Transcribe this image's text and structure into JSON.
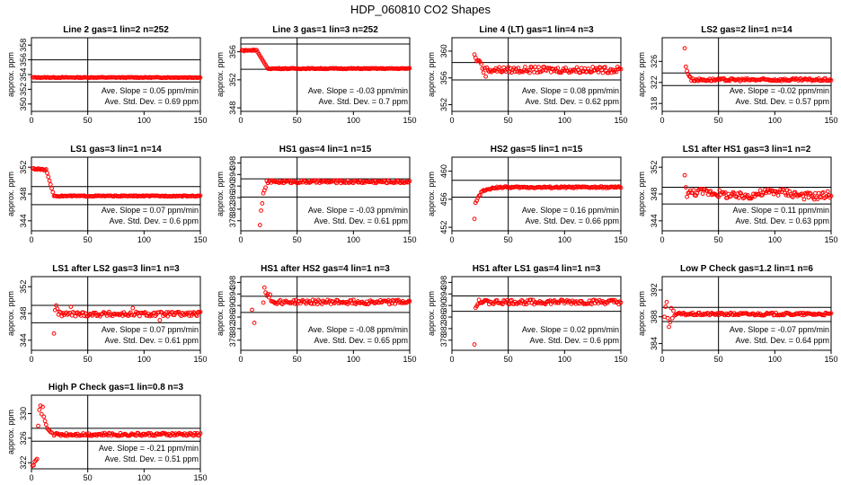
{
  "page": {
    "title": "HDP_060810  CO2 Shapes"
  },
  "chart_data": [
    {
      "type": "scatter",
      "title": "Line 2 gas=1 lin=2 n=252",
      "ylabel": "approx. ppm",
      "xlim": [
        0,
        150
      ],
      "ylim": [
        349,
        359
      ],
      "xticks": [
        0,
        50,
        100,
        150
      ],
      "yticks": [
        350,
        352,
        354,
        356,
        358
      ],
      "hlines": [
        356,
        353
      ],
      "vline": 50,
      "slope_text": "Ave. Slope =  0.05  ppm/min",
      "std_text": "Ave. Std. Dev. =  0.69  ppm",
      "series": [
        {
          "name": "CO2",
          "shape": "flat",
          "start": 1,
          "end": 150,
          "base": 353.6,
          "noise": 0.05,
          "cycles": 0
        }
      ]
    },
    {
      "type": "scatter",
      "title": "Line 3 gas=1 lin=3 n=252",
      "ylabel": "approx. ppm",
      "xlim": [
        0,
        150
      ],
      "ylim": [
        347.5,
        358
      ],
      "xticks": [
        0,
        50,
        100,
        150
      ],
      "yticks": [
        348,
        352,
        356
      ],
      "hlines": [
        357.1,
        353.5
      ],
      "vline": 50,
      "slope_text": "Ave. Slope =  -0.03  ppm/min",
      "std_text": "Ave. Std. Dev. =  0.7  ppm",
      "series": [
        {
          "name": "CO2",
          "shape": "drop",
          "start": 1,
          "end": 150,
          "base": 353.6,
          "noise": 0.06,
          "head_level": 356.2,
          "head_end": 14,
          "tail_end": 24,
          "cycles": 0
        }
      ]
    },
    {
      "type": "scatter",
      "title": "Line 4 (LT) gas=1 lin=4 n=3",
      "ylabel": "approx. ppm",
      "xlim": [
        0,
        150
      ],
      "ylim": [
        351,
        362
      ],
      "xticks": [
        0,
        50,
        100,
        150
      ],
      "yticks": [
        352,
        356,
        360
      ],
      "hlines": [
        358.3,
        355.7
      ],
      "vline": 50,
      "slope_text": "Ave. Slope =  0.08  ppm/min",
      "std_text": "Ave. Std. Dev. =  0.62  ppm",
      "series": [
        {
          "name": "CO2",
          "shape": "flat",
          "start": 20,
          "end": 150,
          "base": 357.2,
          "noise": 0.45,
          "cycles": 0,
          "spikes": [
            [
              20,
              359.5
            ],
            [
              21,
              359
            ],
            [
              22,
              358.5
            ],
            [
              23,
              358.6
            ],
            [
              24,
              358.6
            ],
            [
              25,
              358.4
            ],
            [
              26,
              358.1
            ],
            [
              27,
              357.4
            ],
            [
              28,
              356.8
            ],
            [
              30,
              356.2
            ]
          ]
        }
      ]
    },
    {
      "type": "scatter",
      "title": "LS2 gas=2 lin=1 n=14",
      "ylabel": "approx. ppm",
      "xlim": [
        0,
        150
      ],
      "ylim": [
        316.5,
        330.5
      ],
      "xticks": [
        0,
        50,
        100,
        150
      ],
      "yticks": [
        318,
        322,
        326
      ],
      "hlines": [
        323.8,
        321.4
      ],
      "vline": 50,
      "slope_text": "Ave. Slope =  -0.02  ppm/min",
      "std_text": "Ave. Std. Dev. =  0.57  ppm",
      "series": [
        {
          "name": "CO2",
          "shape": "flat",
          "start": 20,
          "end": 150,
          "base": 322.5,
          "noise": 0.25,
          "cycles": 0,
          "spikes": [
            [
              20,
              328.5
            ],
            [
              21,
              325
            ],
            [
              22,
              324.2
            ],
            [
              23,
              323.6
            ],
            [
              24,
              323.2
            ],
            [
              25,
              323
            ]
          ]
        }
      ]
    },
    {
      "type": "scatter",
      "title": "LS1 gas=3 lin=1 n=14",
      "ylabel": "approx. ppm",
      "xlim": [
        0,
        150
      ],
      "ylim": [
        342.5,
        353.5
      ],
      "xticks": [
        0,
        50,
        100,
        150
      ],
      "yticks": [
        344,
        348,
        352
      ],
      "hlines": [
        349.1,
        346.4
      ],
      "vline": 50,
      "slope_text": "Ave. Slope =  0.07  ppm/min",
      "std_text": "Ave. Std. Dev. =  0.6  ppm",
      "series": [
        {
          "name": "CO2",
          "shape": "drop",
          "start": 1,
          "end": 150,
          "base": 347.7,
          "noise": 0.07,
          "head_level": 351.7,
          "head_end": 13,
          "tail_end": 20,
          "cycles": 0
        }
      ]
    },
    {
      "type": "scatter",
      "title": "HS1 gas=4 lin=1 n=15",
      "ylabel": "approx. ppm",
      "xlim": [
        0,
        150
      ],
      "ylim": [
        374.5,
        400
      ],
      "xticks": [
        0,
        50,
        100,
        150
      ],
      "yticks": [
        378,
        382,
        386,
        390,
        394,
        398
      ],
      "hlines": [
        392.5,
        386.2
      ],
      "vline": 50,
      "slope_text": "Ave. Slope =  -0.03  ppm/min",
      "std_text": "Ave. Std. Dev. =  0.61  ppm",
      "series": [
        {
          "name": "CO2",
          "shape": "flat",
          "start": 20,
          "end": 150,
          "base": 391.5,
          "noise": 0.5,
          "cycles": 0,
          "spikes": [
            [
              17,
              376.5
            ],
            [
              18,
              381.5
            ],
            [
              19,
              384
            ],
            [
              20,
              387.5
            ],
            [
              21,
              388.5
            ],
            [
              22,
              389.5
            ]
          ]
        }
      ]
    },
    {
      "type": "scatter",
      "title": "HS2 gas=5 lin=1 n=15",
      "ylabel": "approx. ppm",
      "xlim": [
        0,
        150
      ],
      "ylim": [
        451.5,
        462
      ],
      "xticks": [
        0,
        50,
        100,
        150
      ],
      "yticks": [
        452,
        456,
        460
      ],
      "hlines": [
        458.7,
        456.3
      ],
      "vline": 50,
      "slope_text": "Ave. Slope =  0.16  ppm/min",
      "std_text": "Ave. Std. Dev. =  0.66  ppm",
      "series": [
        {
          "name": "CO2",
          "shape": "rise",
          "start": 20,
          "end": 150,
          "base": 457.7,
          "noise": 0.12,
          "low": 456.9,
          "low_end": 40,
          "cycles": 0,
          "spikes": [
            [
              20,
              453.2
            ],
            [
              21,
              455.5
            ],
            [
              22,
              455.8
            ],
            [
              23,
              456.2
            ],
            [
              24,
              456.5
            ],
            [
              25,
              456.6
            ]
          ]
        }
      ]
    },
    {
      "type": "scatter",
      "title": "LS1 after HS1 gas=3 lin=1 n=2",
      "ylabel": "approx. ppm",
      "xlim": [
        0,
        150
      ],
      "ylim": [
        342.5,
        353.5
      ],
      "xticks": [
        0,
        50,
        100,
        150
      ],
      "yticks": [
        344,
        348,
        352
      ],
      "hlines": [
        349,
        346.5
      ],
      "vline": 50,
      "slope_text": "Ave. Slope =  0.11  ppm/min",
      "std_text": "Ave. Std. Dev. =  0.63  ppm",
      "series": [
        {
          "name": "CO2",
          "shape": "flat",
          "start": 20,
          "end": 150,
          "base": 348,
          "noise": 0.55,
          "cycles": 2,
          "spikes": [
            [
              20,
              350.8
            ],
            [
              21,
              349
            ]
          ]
        }
      ]
    },
    {
      "type": "scatter",
      "title": "LS1 after LS2 gas=3 lin=1 n=3",
      "ylabel": "approx. ppm",
      "xlim": [
        0,
        150
      ],
      "ylim": [
        342.5,
        353.5
      ],
      "xticks": [
        0,
        50,
        100,
        150
      ],
      "yticks": [
        344,
        348,
        352
      ],
      "hlines": [
        349.2,
        346.6
      ],
      "vline": 50,
      "slope_text": "Ave. Slope =  0.07  ppm/min",
      "std_text": "Ave. Std. Dev. =  0.61  ppm",
      "series": [
        {
          "name": "CO2",
          "shape": "flat",
          "start": 20,
          "end": 150,
          "base": 347.9,
          "noise": 0.35,
          "cycles": 0,
          "spikes": [
            [
              20,
              345
            ],
            [
              21,
              348.5
            ],
            [
              22,
              349.2
            ],
            [
              23,
              348.7
            ],
            [
              114,
              347
            ],
            [
              90,
              348.8
            ],
            [
              35,
              349
            ]
          ]
        }
      ]
    },
    {
      "type": "scatter",
      "title": "HS1 after HS2 gas=4 lin=1 n=3",
      "ylabel": "approx. ppm",
      "xlim": [
        0,
        150
      ],
      "ylim": [
        374.5,
        400
      ],
      "xticks": [
        0,
        50,
        100,
        150
      ],
      "yticks": [
        378,
        382,
        386,
        390,
        394,
        398
      ],
      "hlines": [
        393.2,
        387.6
      ],
      "vline": 50,
      "slope_text": "Ave. Slope =  -0.08  ppm/min",
      "std_text": "Ave. Std. Dev. =  0.65  ppm",
      "series": [
        {
          "name": "CO2",
          "shape": "flat",
          "start": 20,
          "end": 150,
          "base": 391.2,
          "noise": 0.75,
          "cycles": 0,
          "spikes": [
            [
              20,
              391
            ],
            [
              21,
              396.2
            ],
            [
              22,
              394.5
            ],
            [
              23,
              393.4
            ],
            [
              24,
              394
            ],
            [
              25,
              392.8
            ],
            [
              26,
              393.8
            ],
            [
              10,
              388.5
            ],
            [
              12,
              384
            ]
          ]
        }
      ]
    },
    {
      "type": "scatter",
      "title": "HS1 after LS1 gas=4 lin=1 n=3",
      "ylabel": "approx. ppm",
      "xlim": [
        0,
        150
      ],
      "ylim": [
        374.5,
        400
      ],
      "xticks": [
        0,
        50,
        100,
        150
      ],
      "yticks": [
        378,
        382,
        386,
        390,
        394,
        398
      ],
      "hlines": [
        393.3,
        388
      ],
      "vline": 50,
      "slope_text": "Ave. Slope =  0.02  ppm/min",
      "std_text": "Ave. Std. Dev. =  0.6  ppm",
      "series": [
        {
          "name": "CO2",
          "shape": "flat",
          "start": 20,
          "end": 150,
          "base": 391.2,
          "noise": 0.8,
          "cycles": 0,
          "spikes": [
            [
              20,
              376.5
            ],
            [
              21,
              389.2
            ],
            [
              22,
              389.8
            ],
            [
              23,
              390.5
            ]
          ]
        }
      ]
    },
    {
      "type": "scatter",
      "title": "Low P Check gas=1.2 lin=1 n=6",
      "ylabel": "approx. ppm",
      "xlim": [
        0,
        150
      ],
      "ylim": [
        383,
        394
      ],
      "xticks": [
        0,
        50,
        100,
        150
      ],
      "yticks": [
        384,
        388,
        392
      ],
      "hlines": [
        389.4,
        387.3
      ],
      "vline": 50,
      "slope_text": "Ave. Slope =  -0.07  ppm/min",
      "std_text": "Ave. Std. Dev. =  0.64  ppm",
      "series": [
        {
          "name": "CO2",
          "shape": "flat",
          "start": 12,
          "end": 150,
          "base": 388.4,
          "noise": 0.2,
          "cycles": 0,
          "spikes": [
            [
              2,
              388
            ],
            [
              3,
              389.5
            ],
            [
              4,
              390.2
            ],
            [
              5,
              387.8
            ],
            [
              6,
              386.5
            ],
            [
              7,
              387.2
            ],
            [
              8,
              389.3
            ],
            [
              9,
              387.8
            ],
            [
              10,
              388.9
            ],
            [
              11,
              388.2
            ]
          ]
        }
      ]
    },
    {
      "type": "scatter",
      "title": "High P Check gas=1 lin=0.8 n=3",
      "ylabel": "approx. ppm",
      "xlim": [
        0,
        150
      ],
      "ylim": [
        321,
        333
      ],
      "xticks": [
        0,
        50,
        100,
        150
      ],
      "yticks": [
        322,
        326,
        330
      ],
      "hlines": [
        327.6,
        325.5
      ],
      "vline": 50,
      "slope_text": "Ave. Slope =  -0.21  ppm/min",
      "std_text": "Ave. Std. Dev. =  0.51  ppm",
      "series": [
        {
          "name": "CO2",
          "shape": "flat",
          "start": 20,
          "end": 150,
          "base": 326.6,
          "noise": 0.25,
          "cycles": 0,
          "spikes": [
            [
              1,
              321.5
            ],
            [
              2,
              321.6
            ],
            [
              3,
              322.2
            ],
            [
              4,
              322.4
            ],
            [
              5,
              322.6
            ],
            [
              6,
              328
            ],
            [
              7,
              330.6
            ],
            [
              8,
              331.3
            ],
            [
              9,
              329.9
            ],
            [
              10,
              331.1
            ],
            [
              11,
              329.5
            ],
            [
              12,
              328.8
            ],
            [
              13,
              328.2
            ],
            [
              14,
              327.6
            ],
            [
              15,
              327.4
            ],
            [
              16,
              327.2
            ],
            [
              17,
              327
            ],
            [
              18,
              326.9
            ]
          ]
        }
      ]
    }
  ]
}
